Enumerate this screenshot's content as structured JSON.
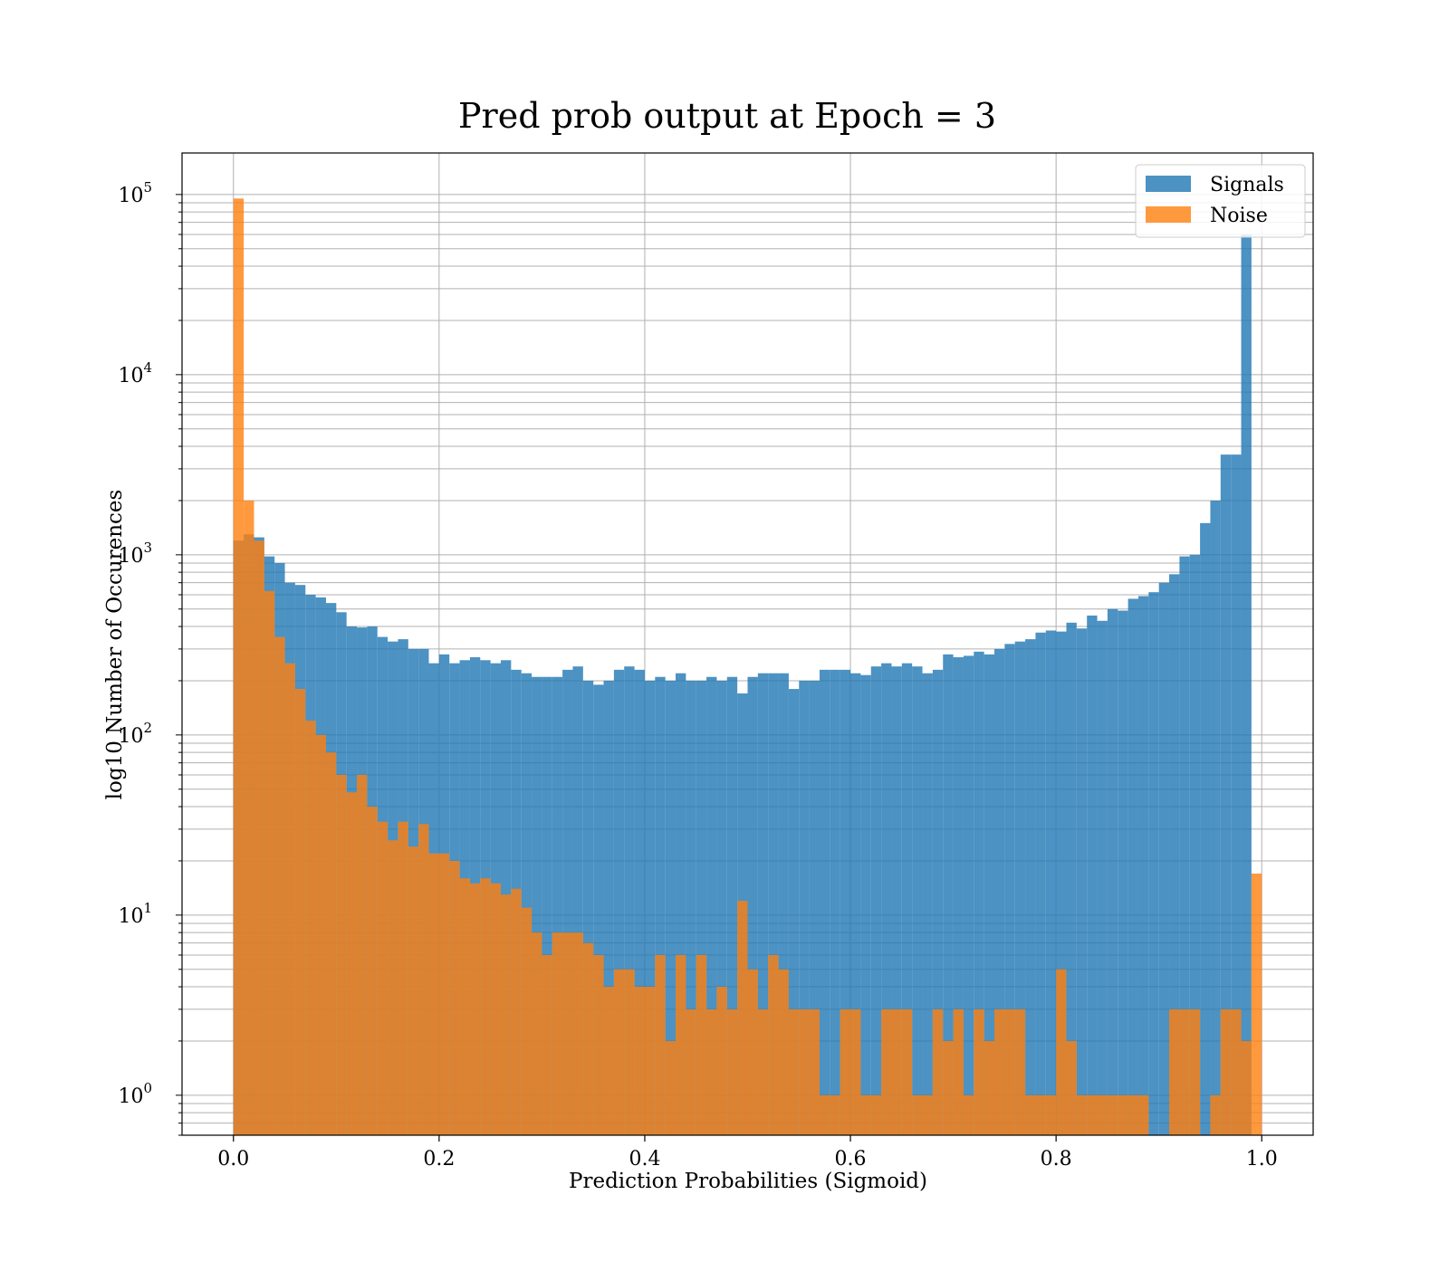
{
  "chart_data": {
    "type": "bar",
    "title": "Pred prob output at Epoch = 3",
    "xlabel": "Prediction Probabilities (Sigmoid)",
    "ylabel": "log10 Number of Occurences",
    "yscale": "log",
    "xlim": [
      -0.05,
      1.05
    ],
    "ylim": [
      0.6,
      170000
    ],
    "grid": true,
    "legend_position": "top-right",
    "x_tick_labels": [
      "0.0",
      "0.2",
      "0.4",
      "0.6",
      "0.8",
      "1.0"
    ],
    "x_tick_values": [
      0,
      0.2,
      0.4,
      0.6,
      0.8,
      1.0
    ],
    "y_tick_labels": [
      {
        "base": "10",
        "exp": "0",
        "value": 1
      },
      {
        "base": "10",
        "exp": "1",
        "value": 10
      },
      {
        "base": "10",
        "exp": "2",
        "value": 100
      },
      {
        "base": "10",
        "exp": "3",
        "value": 1000
      },
      {
        "base": "10",
        "exp": "4",
        "value": 10000
      },
      {
        "base": "10",
        "exp": "5",
        "value": 100000
      }
    ],
    "bins": 100,
    "bin_start": 0.0,
    "bin_end": 1.0,
    "series": [
      {
        "name": "Signals",
        "color": "#1f77b4",
        "opacity": 0.8,
        "values": [
          1200,
          1300,
          1250,
          980,
          900,
          700,
          680,
          600,
          580,
          540,
          480,
          400,
          395,
          400,
          350,
          330,
          340,
          300,
          300,
          250,
          280,
          250,
          260,
          270,
          260,
          250,
          260,
          230,
          220,
          210,
          210,
          210,
          230,
          240,
          200,
          190,
          200,
          230,
          240,
          230,
          200,
          210,
          200,
          220,
          200,
          200,
          210,
          200,
          210,
          170,
          210,
          220,
          220,
          220,
          180,
          200,
          200,
          230,
          230,
          230,
          220,
          215,
          240,
          250,
          240,
          250,
          240,
          220,
          230,
          280,
          270,
          275,
          290,
          280,
          300,
          320,
          330,
          340,
          370,
          380,
          375,
          420,
          390,
          460,
          430,
          500,
          490,
          570,
          590,
          620,
          700,
          780,
          980,
          1000,
          1500,
          2000,
          3600,
          3600,
          60000,
          0
        ]
      },
      {
        "name": "Noise",
        "color": "#ff7f0e",
        "opacity": 0.8,
        "values": [
          95000,
          2000,
          1200,
          630,
          350,
          250,
          180,
          120,
          100,
          80,
          60,
          48,
          60,
          40,
          33,
          26,
          33,
          24,
          32,
          22,
          22,
          20,
          16,
          15,
          16,
          15,
          13,
          14,
          11,
          8,
          6,
          8,
          8,
          8,
          7,
          6,
          4,
          5,
          5,
          4,
          4,
          6,
          2,
          6,
          3,
          6,
          3,
          4,
          3,
          12,
          5,
          3,
          6,
          5,
          3,
          3,
          3,
          1,
          1,
          3,
          3,
          1,
          1,
          3,
          3,
          3,
          1,
          1,
          3,
          2,
          3,
          1,
          3,
          2,
          3,
          3,
          3,
          1,
          1,
          1,
          5,
          2,
          1,
          1,
          1,
          1,
          1,
          1,
          1,
          0,
          0,
          3,
          3,
          3,
          0,
          1,
          3,
          3,
          2,
          17
        ]
      }
    ]
  }
}
